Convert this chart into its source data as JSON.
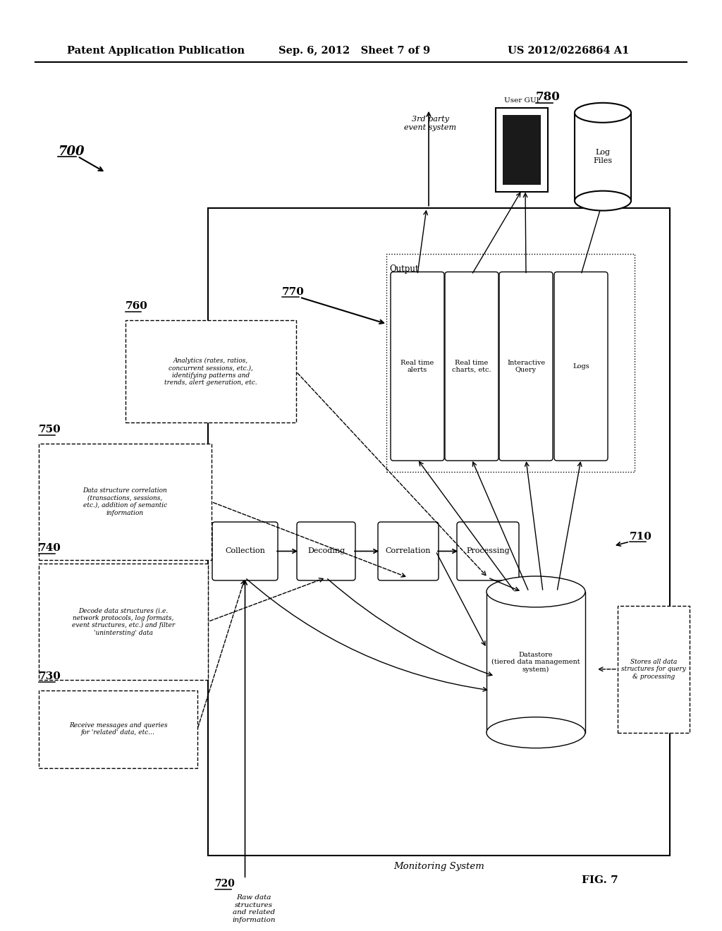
{
  "header_left": "Patent Application Publication",
  "header_mid": "Sep. 6, 2012   Sheet 7 of 9",
  "header_right": "US 2012/0226864 A1",
  "fig_label": "FIG. 7",
  "diagram_num": "700",
  "bg_color": "#ffffff",
  "edge_color": "#000000",
  "label_730": "730",
  "label_740": "740",
  "label_750": "750",
  "label_760": "760",
  "label_770": "770",
  "label_780": "780",
  "label_710": "710",
  "label_720": "720",
  "text_730": "Receive messages and queries\nfor 'related' data, etc...",
  "text_740": "Decode data structures (i.e.\nnetwork protocols, log formats,\nevent structures, etc.) and filter\n'unintersting' data",
  "text_750": "Data structure correlation\n(transactions, sessions,\netc.), addition of semantic\ninformation",
  "text_760": "Analytics (rates, ratios,\nconcurrent sessions, etc.),\nidentifying patterns and\ntrends, alert generation, etc.",
  "text_710": "Stores all data\nstructures for query\n& processing",
  "text_720": "Raw data\nstructures\nand related\ninformation",
  "text_monitoring": "Monitoring System",
  "text_output": "Output",
  "text_datastore": "Datastore\n(tiered data management\nsystem)",
  "text_3rdparty": "3rd party\nevent system",
  "text_usergui": "User GUI",
  "text_logfiles": "Log\nFiles",
  "box_labels": [
    "Real time\nalerts",
    "Real time\ncharts, etc.",
    "Interactive\nQuery",
    "Logs"
  ],
  "proc_labels": [
    "Collection",
    "Decoding",
    "Correlation",
    "Processing"
  ]
}
